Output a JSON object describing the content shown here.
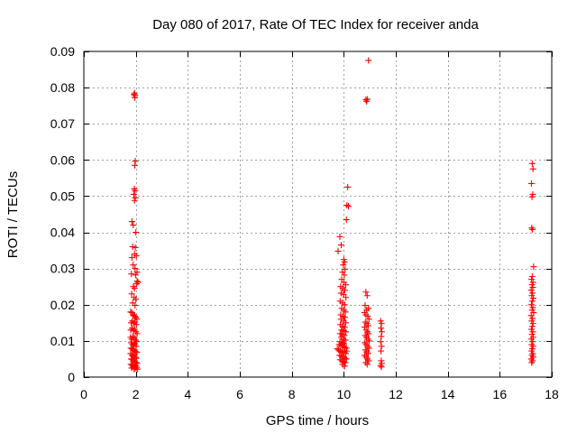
{
  "chart_data": {
    "type": "scatter",
    "title": "Day 080 of 2017, Rate Of TEC Index for receiver anda",
    "xlabel": "GPS time / hours",
    "ylabel": "ROTI / TECUs",
    "xlim": [
      0,
      18
    ],
    "ylim": [
      0,
      0.09
    ],
    "xticks": [
      0,
      2,
      4,
      6,
      8,
      10,
      12,
      14,
      16,
      18
    ],
    "yticks": [
      0,
      0.01,
      0.02,
      0.03,
      0.04,
      0.05,
      0.06,
      0.07,
      0.08,
      0.09
    ],
    "xtick_labels": [
      "0",
      "2",
      "4",
      "6",
      "8",
      "10",
      "12",
      "14",
      "16",
      "18"
    ],
    "ytick_labels": [
      "0",
      "0.01",
      "0.02",
      "0.03",
      "0.04",
      "0.05",
      "0.06",
      "0.07",
      "0.08",
      "0.09"
    ],
    "grid": true,
    "marker": "+",
    "color": "#ff0000",
    "series": [
      {
        "name": "ROTI",
        "points": [
          [
            1.95,
            0.0785
          ],
          [
            1.97,
            0.0778
          ],
          [
            1.93,
            0.0781
          ],
          [
            1.96,
            0.0772
          ],
          [
            1.98,
            0.0597
          ],
          [
            1.96,
            0.0585
          ],
          [
            1.94,
            0.052
          ],
          [
            1.97,
            0.0515
          ],
          [
            1.92,
            0.0505
          ],
          [
            1.98,
            0.0495
          ],
          [
            1.95,
            0.0488
          ],
          [
            1.85,
            0.043
          ],
          [
            1.9,
            0.042
          ],
          [
            2.0,
            0.04
          ],
          [
            1.88,
            0.036
          ],
          [
            1.98,
            0.0358
          ],
          [
            1.95,
            0.034
          ],
          [
            2.02,
            0.0335
          ],
          [
            1.85,
            0.033
          ],
          [
            1.9,
            0.031
          ],
          [
            1.97,
            0.03
          ],
          [
            2.05,
            0.029
          ],
          [
            1.83,
            0.0285
          ],
          [
            1.99,
            0.0282
          ],
          [
            2.05,
            0.0265
          ],
          [
            2.08,
            0.0262
          ],
          [
            2.03,
            0.0258
          ],
          [
            1.9,
            0.025
          ],
          [
            1.95,
            0.0245
          ],
          [
            1.84,
            0.023
          ],
          [
            1.93,
            0.022
          ],
          [
            2.0,
            0.0215
          ],
          [
            1.88,
            0.0205
          ],
          [
            1.97,
            0.0198
          ],
          [
            1.8,
            0.018
          ],
          [
            1.85,
            0.0178
          ],
          [
            1.9,
            0.017
          ],
          [
            1.93,
            0.0172
          ],
          [
            1.96,
            0.0168
          ],
          [
            2.0,
            0.0165
          ],
          [
            2.04,
            0.016
          ],
          [
            1.82,
            0.015
          ],
          [
            1.87,
            0.0155
          ],
          [
            1.92,
            0.0148
          ],
          [
            1.97,
            0.0152
          ],
          [
            2.02,
            0.0145
          ],
          [
            1.81,
            0.013
          ],
          [
            1.86,
            0.0135
          ],
          [
            1.91,
            0.0128
          ],
          [
            1.95,
            0.0132
          ],
          [
            2.0,
            0.0125
          ],
          [
            2.05,
            0.012
          ],
          [
            1.8,
            0.011
          ],
          [
            1.84,
            0.0105
          ],
          [
            1.89,
            0.0112
          ],
          [
            1.94,
            0.0108
          ],
          [
            1.99,
            0.0102
          ],
          [
            2.03,
            0.0098
          ],
          [
            1.82,
            0.0095
          ],
          [
            1.87,
            0.009
          ],
          [
            1.92,
            0.0088
          ],
          [
            1.96,
            0.0092
          ],
          [
            2.01,
            0.0085
          ],
          [
            1.81,
            0.008
          ],
          [
            1.86,
            0.0078
          ],
          [
            1.9,
            0.0075
          ],
          [
            1.95,
            0.0072
          ],
          [
            2.0,
            0.007
          ],
          [
            2.04,
            0.0068
          ],
          [
            1.8,
            0.0065
          ],
          [
            1.85,
            0.006
          ],
          [
            1.89,
            0.0058
          ],
          [
            1.94,
            0.0062
          ],
          [
            1.98,
            0.0055
          ],
          [
            2.02,
            0.0052
          ],
          [
            1.82,
            0.005
          ],
          [
            1.87,
            0.0048
          ],
          [
            1.91,
            0.0045
          ],
          [
            1.96,
            0.0042
          ],
          [
            2.01,
            0.004
          ],
          [
            2.05,
            0.0038
          ],
          [
            1.81,
            0.0035
          ],
          [
            1.86,
            0.0033
          ],
          [
            1.9,
            0.003
          ],
          [
            1.95,
            0.0028
          ],
          [
            2.0,
            0.0032
          ],
          [
            2.03,
            0.0027
          ],
          [
            1.84,
            0.0025
          ],
          [
            1.93,
            0.0022
          ],
          [
            1.98,
            0.0024
          ],
          [
            2.06,
            0.0022
          ],
          [
            10.95,
            0.0875
          ],
          [
            10.85,
            0.0766
          ],
          [
            10.88,
            0.0762
          ],
          [
            10.9,
            0.0768
          ],
          [
            10.15,
            0.0525
          ],
          [
            10.12,
            0.0475
          ],
          [
            10.18,
            0.0472
          ],
          [
            10.1,
            0.0435
          ],
          [
            9.85,
            0.0388
          ],
          [
            9.9,
            0.0365
          ],
          [
            9.78,
            0.0348
          ],
          [
            10.0,
            0.0325
          ],
          [
            10.03,
            0.0318
          ],
          [
            9.98,
            0.031
          ],
          [
            10.05,
            0.0298
          ],
          [
            9.95,
            0.029
          ],
          [
            10.02,
            0.0282
          ],
          [
            9.92,
            0.027
          ],
          [
            10.0,
            0.0262
          ],
          [
            10.07,
            0.0255
          ],
          [
            9.88,
            0.025
          ],
          [
            9.96,
            0.0245
          ],
          [
            10.04,
            0.024
          ],
          [
            9.9,
            0.0232
          ],
          [
            9.99,
            0.0228
          ],
          [
            10.08,
            0.022
          ],
          [
            9.86,
            0.021
          ],
          [
            9.95,
            0.0205
          ],
          [
            10.03,
            0.02
          ],
          [
            9.92,
            0.019
          ],
          [
            10.0,
            0.0185
          ],
          [
            10.06,
            0.018
          ],
          [
            9.88,
            0.0172
          ],
          [
            9.97,
            0.0168
          ],
          [
            10.04,
            0.0165
          ],
          [
            9.9,
            0.016
          ],
          [
            9.99,
            0.0155
          ],
          [
            10.07,
            0.015
          ],
          [
            9.87,
            0.0145
          ],
          [
            9.95,
            0.014
          ],
          [
            10.03,
            0.0138
          ],
          [
            9.91,
            0.013
          ],
          [
            10.0,
            0.0128
          ],
          [
            10.08,
            0.0125
          ],
          [
            9.86,
            0.012
          ],
          [
            9.94,
            0.0118
          ],
          [
            10.02,
            0.0115
          ],
          [
            9.9,
            0.011
          ],
          [
            9.98,
            0.0105
          ],
          [
            10.06,
            0.0102
          ],
          [
            9.85,
            0.0098
          ],
          [
            9.93,
            0.0095
          ],
          [
            10.01,
            0.0092
          ],
          [
            9.82,
            0.009
          ],
          [
            9.89,
            0.0088
          ],
          [
            9.96,
            0.0085
          ],
          [
            10.04,
            0.0082
          ],
          [
            10.1,
            0.008
          ],
          [
            9.75,
            0.0078
          ],
          [
            9.8,
            0.0075
          ],
          [
            9.87,
            0.0072
          ],
          [
            9.94,
            0.007
          ],
          [
            10.0,
            0.0068
          ],
          [
            10.07,
            0.0065
          ],
          [
            10.12,
            0.0072
          ],
          [
            9.84,
            0.006
          ],
          [
            9.91,
            0.0058
          ],
          [
            9.98,
            0.0055
          ],
          [
            10.05,
            0.0052
          ],
          [
            10.1,
            0.005
          ],
          [
            9.86,
            0.0048
          ],
          [
            9.93,
            0.0045
          ],
          [
            10.0,
            0.0042
          ],
          [
            10.06,
            0.004
          ],
          [
            9.95,
            0.0035
          ],
          [
            10.03,
            0.003
          ],
          [
            10.85,
            0.0235
          ],
          [
            10.9,
            0.0225
          ],
          [
            10.82,
            0.0198
          ],
          [
            10.95,
            0.019
          ],
          [
            10.88,
            0.0185
          ],
          [
            10.8,
            0.0178
          ],
          [
            10.85,
            0.0172
          ],
          [
            10.92,
            0.0168
          ],
          [
            10.97,
            0.016
          ],
          [
            10.83,
            0.0152
          ],
          [
            10.89,
            0.0148
          ],
          [
            10.94,
            0.0142
          ],
          [
            10.8,
            0.0138
          ],
          [
            10.86,
            0.013
          ],
          [
            10.91,
            0.0125
          ],
          [
            10.96,
            0.012
          ],
          [
            10.82,
            0.0115
          ],
          [
            10.87,
            0.011
          ],
          [
            10.93,
            0.0105
          ],
          [
            10.98,
            0.01
          ],
          [
            10.81,
            0.0095
          ],
          [
            10.86,
            0.009
          ],
          [
            10.92,
            0.0085
          ],
          [
            10.97,
            0.008
          ],
          [
            10.83,
            0.0075
          ],
          [
            10.88,
            0.007
          ],
          [
            10.94,
            0.0065
          ],
          [
            10.8,
            0.006
          ],
          [
            10.86,
            0.0055
          ],
          [
            10.91,
            0.005
          ],
          [
            10.96,
            0.0045
          ],
          [
            10.84,
            0.004
          ],
          [
            10.9,
            0.0035
          ],
          [
            11.42,
            0.0155
          ],
          [
            11.45,
            0.0148
          ],
          [
            11.43,
            0.0135
          ],
          [
            11.46,
            0.0125
          ],
          [
            11.44,
            0.0112
          ],
          [
            11.42,
            0.0098
          ],
          [
            11.45,
            0.0085
          ],
          [
            11.43,
            0.0072
          ],
          [
            11.44,
            0.0045
          ],
          [
            11.46,
            0.0038
          ],
          [
            11.42,
            0.0032
          ],
          [
            11.45,
            0.0028
          ],
          [
            17.25,
            0.059
          ],
          [
            17.28,
            0.0575
          ],
          [
            17.22,
            0.0535
          ],
          [
            17.27,
            0.0505
          ],
          [
            17.24,
            0.0498
          ],
          [
            17.23,
            0.0412
          ],
          [
            17.26,
            0.0408
          ],
          [
            17.3,
            0.0305
          ],
          [
            17.25,
            0.0278
          ],
          [
            17.22,
            0.027
          ],
          [
            17.28,
            0.0262
          ],
          [
            17.24,
            0.0255
          ],
          [
            17.27,
            0.0248
          ],
          [
            17.21,
            0.024
          ],
          [
            17.26,
            0.0232
          ],
          [
            17.23,
            0.0225
          ],
          [
            17.29,
            0.0218
          ],
          [
            17.25,
            0.021
          ],
          [
            17.22,
            0.02
          ],
          [
            17.27,
            0.0192
          ],
          [
            17.24,
            0.0185
          ],
          [
            17.3,
            0.0178
          ],
          [
            17.21,
            0.017
          ],
          [
            17.26,
            0.0162
          ],
          [
            17.23,
            0.0155
          ],
          [
            17.28,
            0.0148
          ],
          [
            17.25,
            0.014
          ],
          [
            17.22,
            0.0132
          ],
          [
            17.27,
            0.0125
          ],
          [
            17.24,
            0.0118
          ],
          [
            17.29,
            0.011
          ],
          [
            17.21,
            0.0105
          ],
          [
            17.26,
            0.0098
          ],
          [
            17.23,
            0.009
          ],
          [
            17.28,
            0.0085
          ],
          [
            17.25,
            0.0078
          ],
          [
            17.22,
            0.0072
          ],
          [
            17.27,
            0.0065
          ],
          [
            17.24,
            0.006
          ],
          [
            17.29,
            0.0055
          ],
          [
            17.21,
            0.005
          ],
          [
            17.26,
            0.0045
          ],
          [
            17.23,
            0.004
          ]
        ]
      }
    ]
  }
}
